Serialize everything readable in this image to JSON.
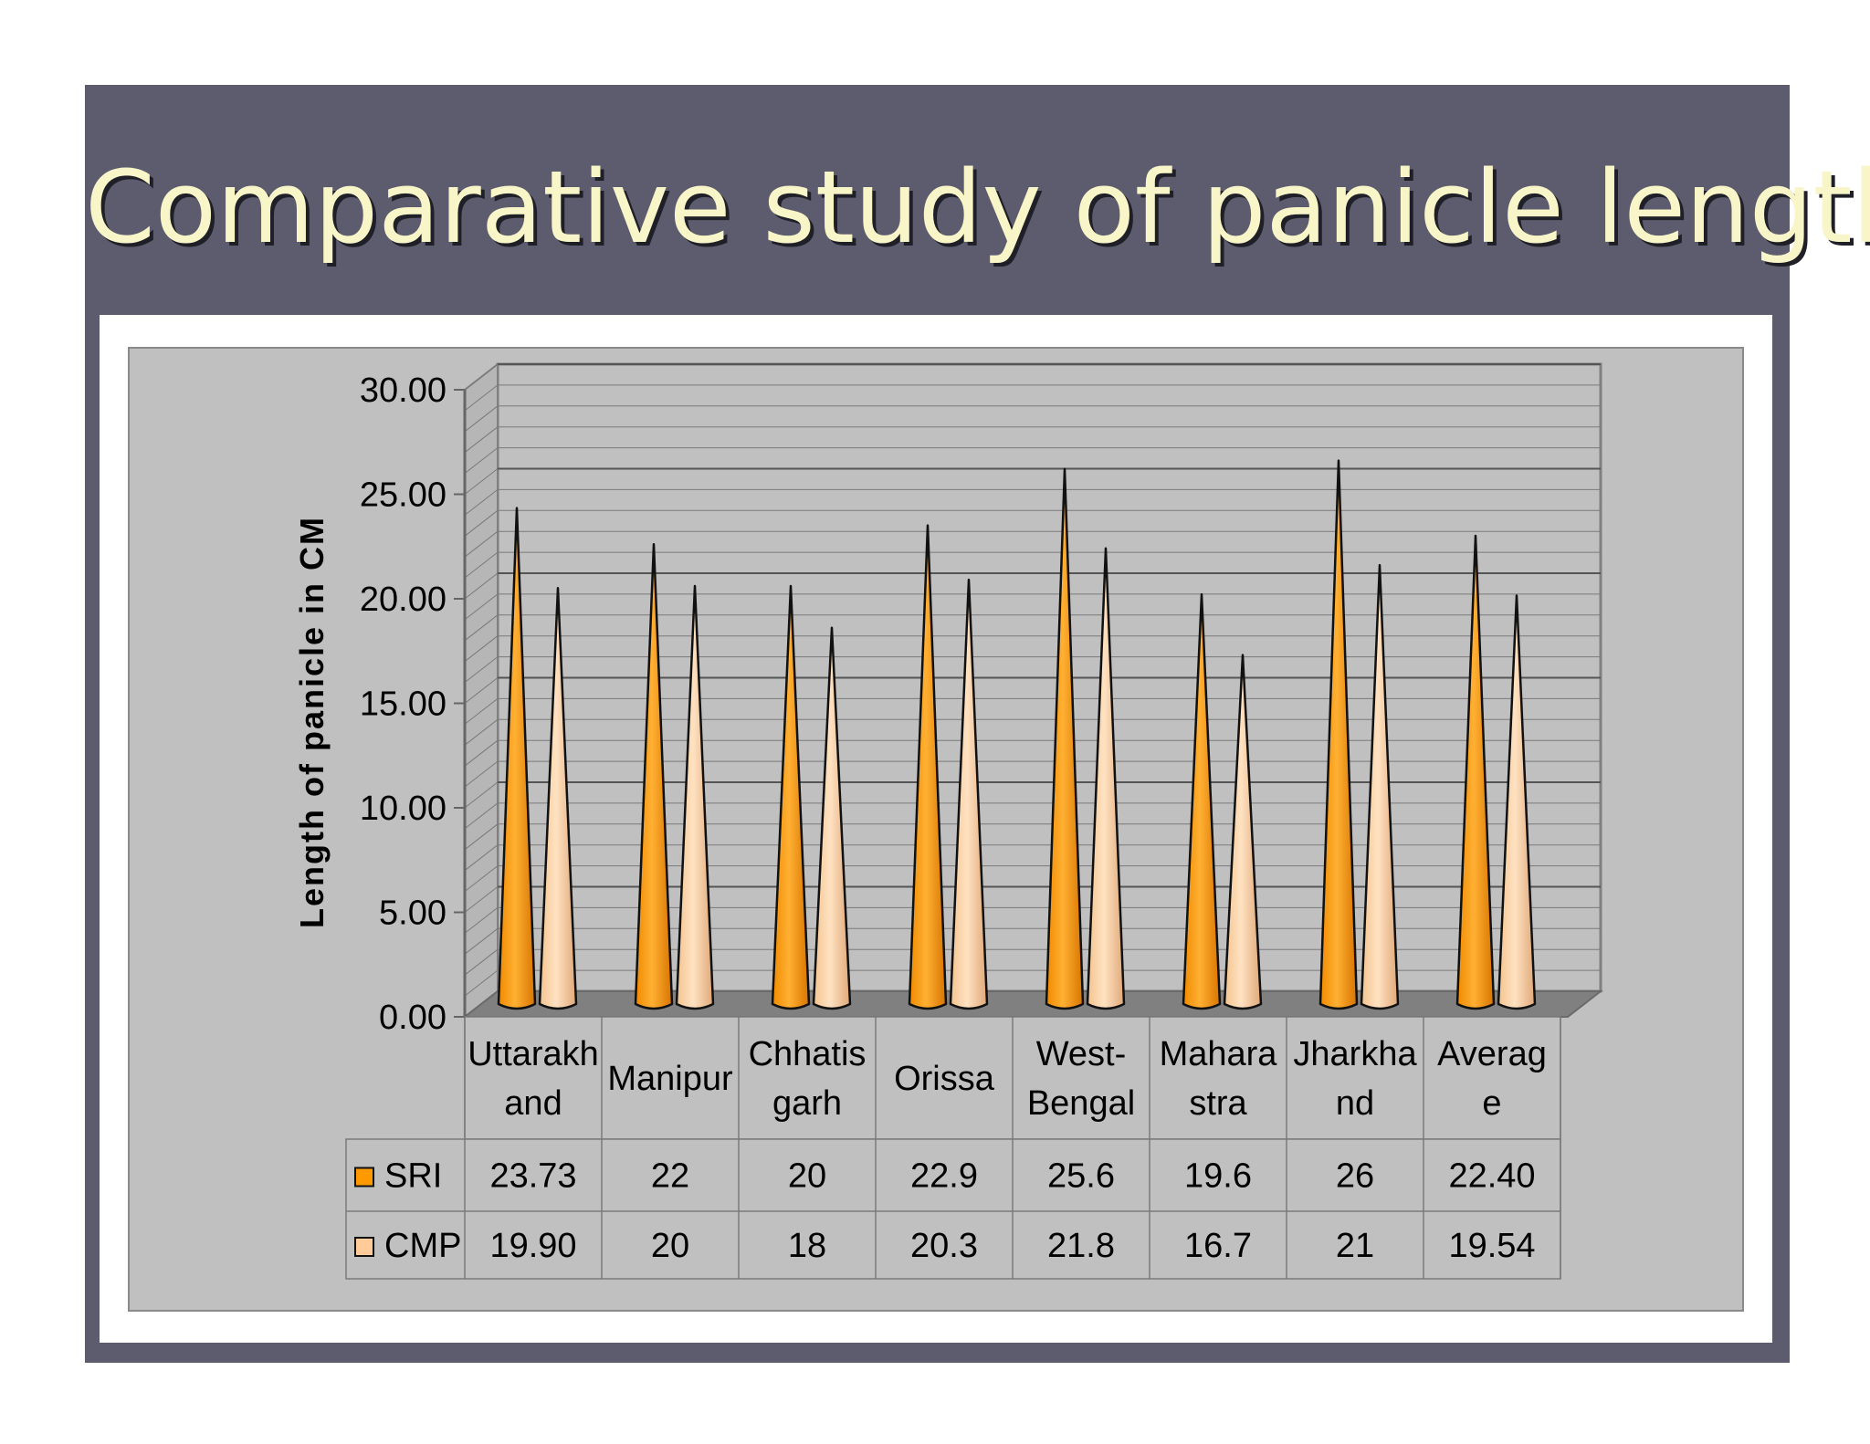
{
  "slide_title": "Comparative study of panicle length",
  "chart_data": {
    "type": "bar",
    "ylabel": "Length of panicle in CM",
    "ylim": [
      0,
      30
    ],
    "yticks": [
      "0.00",
      "5.00",
      "10.00",
      "15.00",
      "20.00",
      "25.00",
      "30.00"
    ],
    "categories": [
      [
        "Uttarakh",
        "and"
      ],
      [
        "Manipur"
      ],
      [
        "Chhatis",
        "garh"
      ],
      [
        "Orissa"
      ],
      [
        "West-",
        "Bengal"
      ],
      [
        "Mahara",
        "stra"
      ],
      [
        "Jharkha",
        "nd"
      ],
      [
        "Averag",
        "e"
      ]
    ],
    "series": [
      {
        "name": "SRI",
        "values": [
          23.73,
          22,
          20,
          22.9,
          25.6,
          19.6,
          26,
          22.4
        ],
        "labels": [
          "23.73",
          "22",
          "20",
          "22.9",
          "25.6",
          "19.6",
          "26",
          "22.40"
        ],
        "color": "#ff9900"
      },
      {
        "name": "CMP",
        "values": [
          19.9,
          20,
          18,
          20.3,
          21.8,
          16.7,
          21,
          19.54
        ],
        "labels": [
          "19.90",
          "20",
          "18",
          "20.3",
          "21.8",
          "16.7",
          "21",
          "19.54"
        ],
        "color": "#ffcc99"
      }
    ],
    "style": "3d-cone",
    "grid": true,
    "legend": "data-table"
  }
}
